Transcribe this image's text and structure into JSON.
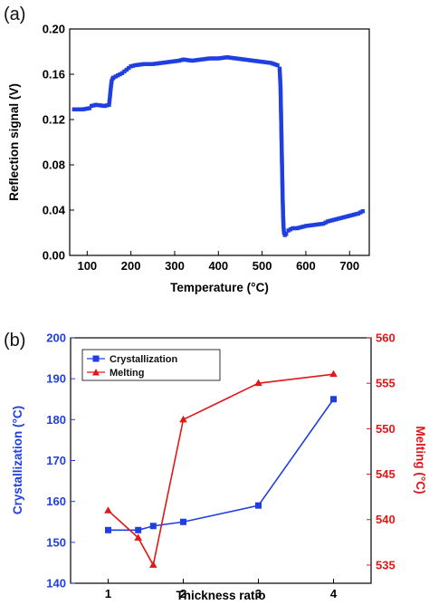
{
  "chart_data": [
    {
      "panel_label": "(a)",
      "type": "scatter",
      "xlabel": "Temperature (°C)",
      "ylabel": "Reflection signal (V)",
      "xlim": [
        60,
        745
      ],
      "ylim": [
        0.0,
        0.2
      ],
      "xticks": [
        "100",
        "200",
        "300",
        "400",
        "500",
        "600",
        "700"
      ],
      "yticks": [
        "0.00",
        "0.04",
        "0.08",
        "0.12",
        "0.16",
        "0.20"
      ],
      "color": "#1f3fe0",
      "series": [
        {
          "x": [
            70,
            90,
            105,
            110,
            120,
            140,
            150,
            152,
            154,
            156,
            158,
            160,
            170,
            180,
            190,
            200,
            210,
            230,
            250,
            270,
            290,
            310,
            320,
            340,
            360,
            380,
            400,
            420,
            440,
            460,
            480,
            500,
            520,
            535,
            540,
            542,
            543,
            544,
            545,
            546,
            547,
            548,
            549,
            550,
            552,
            555,
            560,
            570,
            580,
            600,
            620,
            640,
            650,
            660,
            680,
            700,
            720,
            730
          ],
          "y": [
            0.129,
            0.129,
            0.13,
            0.132,
            0.133,
            0.132,
            0.133,
            0.14,
            0.148,
            0.154,
            0.156,
            0.157,
            0.159,
            0.161,
            0.164,
            0.167,
            0.168,
            0.169,
            0.169,
            0.17,
            0.171,
            0.172,
            0.173,
            0.172,
            0.173,
            0.174,
            0.174,
            0.175,
            0.174,
            0.173,
            0.172,
            0.171,
            0.17,
            0.168,
            0.165,
            0.15,
            0.13,
            0.11,
            0.09,
            0.07,
            0.05,
            0.035,
            0.025,
            0.02,
            0.018,
            0.019,
            0.022,
            0.024,
            0.024,
            0.026,
            0.027,
            0.028,
            0.03,
            0.031,
            0.033,
            0.035,
            0.037,
            0.039
          ]
        }
      ]
    },
    {
      "panel_label": "(b)",
      "type": "line",
      "xlabel": "Thickness ratio",
      "ylabel": "Crystallization (°C)",
      "ylabel_right": "Melting (°C)",
      "xlim": [
        0.5,
        4.5
      ],
      "ylim": [
        140,
        200
      ],
      "ylim_right": [
        533,
        560
      ],
      "xticks": [
        "1",
        "2",
        "3",
        "4"
      ],
      "yticks": [
        "140",
        "150",
        "160",
        "170",
        "180",
        "190",
        "200"
      ],
      "yticks_right": [
        "535",
        "540",
        "545",
        "550",
        "555",
        "560"
      ],
      "legend_position": "top-left",
      "series": [
        {
          "name": "Crystallization",
          "axis": "left",
          "color": "#1f3fe0",
          "marker": "square",
          "x": [
            1,
            1.4,
            1.6,
            2,
            3,
            4
          ],
          "y": [
            153,
            153,
            154,
            155,
            159,
            185
          ]
        },
        {
          "name": "Melting",
          "axis": "right",
          "color": "#e01818",
          "marker": "triangle",
          "x": [
            1,
            1.4,
            1.6,
            2,
            3,
            4
          ],
          "y": [
            541,
            538,
            535,
            551,
            555,
            556
          ]
        }
      ]
    }
  ]
}
